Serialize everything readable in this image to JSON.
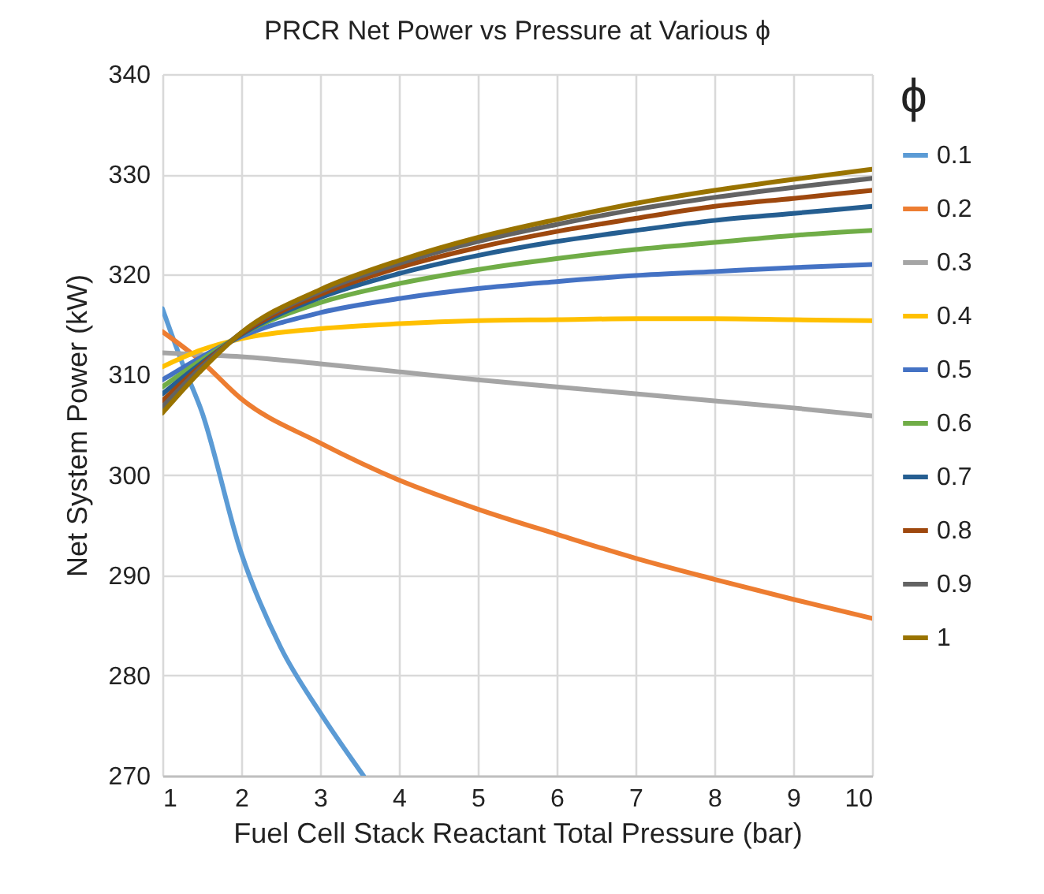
{
  "chart_data": {
    "type": "line",
    "title": "PRCR Net Power vs Pressure at Various ϕ",
    "xlabel": "Fuel Cell Stack Reactant Total Pressure (bar)",
    "ylabel": "Net System Power (kW)",
    "legend_title": "ϕ",
    "xlim": [
      1,
      10
    ],
    "xticks": [
      1,
      2,
      3,
      4,
      5,
      6,
      7,
      8,
      9,
      10
    ],
    "ylim": [
      270,
      340
    ],
    "yticks": [
      270,
      280,
      290,
      300,
      310,
      320,
      330,
      340
    ],
    "grid": true,
    "legend": "right",
    "marker": "none",
    "line_style": "solid",
    "x": [
      1,
      1.5,
      2,
      3,
      4,
      5,
      6,
      7,
      8,
      9,
      10
    ],
    "series": [
      {
        "name": "0.1",
        "color": "#5b9bd5",
        "x": [
          1,
          1.25,
          1.5,
          2,
          2.5,
          3,
          3.55
        ],
        "values": [
          316.6,
          311.2,
          306.3,
          292.2,
          282.8,
          276.3,
          270
        ]
      },
      {
        "name": "0.2",
        "color": "#ed7d31",
        "values": [
          314.3,
          311.3,
          307.6,
          303.2,
          299.5,
          296.6,
          294.1,
          291.7,
          289.6,
          287.6,
          285.7
        ]
      },
      {
        "name": "0.3",
        "color": "#a5a5a5",
        "values": [
          312.2,
          312,
          311.8,
          311.1,
          310.3,
          309.5,
          308.8,
          308.1,
          307.4,
          306.7,
          305.9
        ]
      },
      {
        "name": "0.4",
        "color": "#ffc000",
        "values": [
          310.8,
          312.5,
          313.6,
          314.6,
          315.1,
          315.4,
          315.5,
          315.6,
          315.6,
          315.5,
          315.4
        ]
      },
      {
        "name": "0.5",
        "color": "#4472c4",
        "values": [
          309.5,
          311.8,
          313.8,
          316.2,
          317.6,
          318.6,
          319.3,
          319.9,
          320.3,
          320.7,
          321.0
        ]
      },
      {
        "name": "0.6",
        "color": "#70ad47",
        "values": [
          308.8,
          311.5,
          314,
          317.2,
          319.1,
          320.5,
          321.6,
          322.5,
          323.2,
          323.9,
          324.4
        ]
      },
      {
        "name": "0.7",
        "color": "#255e91",
        "values": [
          308.1,
          311.2,
          314,
          317.7,
          320.1,
          321.9,
          323.3,
          324.4,
          325.4,
          326.1,
          326.8
        ]
      },
      {
        "name": "0.8",
        "color": "#9e480e",
        "values": [
          307.4,
          311,
          314.1,
          318,
          320.7,
          322.7,
          324.3,
          325.6,
          326.8,
          327.6,
          328.4
        ]
      },
      {
        "name": "0.9",
        "color": "#636363",
        "values": [
          306.8,
          310.8,
          314.2,
          318.3,
          321.1,
          323.3,
          325,
          326.5,
          327.7,
          328.7,
          329.6
        ]
      },
      {
        "name": "1",
        "color": "#997300",
        "values": [
          306.2,
          310.5,
          314.2,
          318.5,
          321.4,
          323.7,
          325.5,
          327.1,
          328.4,
          329.5,
          330.5
        ]
      }
    ]
  }
}
